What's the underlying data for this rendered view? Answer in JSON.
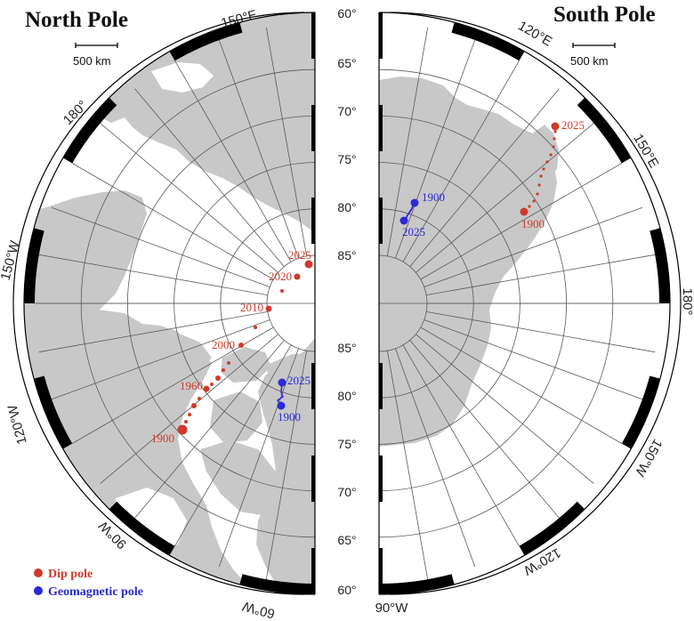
{
  "north": {
    "title": "North Pole",
    "scale_label": "500 km",
    "lon_labels": {
      "e150": "150°E",
      "l180": "180°",
      "w150": "150°W",
      "w120": "120°W",
      "w90": "90°W",
      "w60": "60°W"
    },
    "dip_labels": {
      "y1900": "1900",
      "y1960": "1960",
      "y2000": "2000",
      "y2010": "2010",
      "y2020": "2020",
      "y2025": "2025"
    },
    "geo_labels": {
      "y1900": "1900",
      "y2025": "2025"
    }
  },
  "south": {
    "title": "South Pole",
    "scale_label": "500 km",
    "lon_labels": {
      "e120": "120°E",
      "e150": "150°E",
      "l180": "180°",
      "w150": "150°W",
      "w120": "120°W",
      "w90": "90°W"
    },
    "dip_labels": {
      "y1900": "1900",
      "y2025": "2025"
    },
    "geo_labels": {
      "y1900": "1900",
      "y2025": "2025"
    }
  },
  "lat_labels": {
    "top": [
      "60°",
      "65°",
      "70°",
      "75°",
      "80°",
      "85°"
    ],
    "bottom": [
      "85°",
      "80°",
      "75°",
      "70°",
      "65°",
      "60°"
    ]
  },
  "legend": {
    "dip": "Dip pole",
    "geo": "Geomagnetic pole"
  },
  "colors": {
    "land": "#c8c8c8",
    "grid": "#5a5a5a",
    "dip": "#d03a2a",
    "geo": "#2a2ad8",
    "frame": "#000000"
  }
}
